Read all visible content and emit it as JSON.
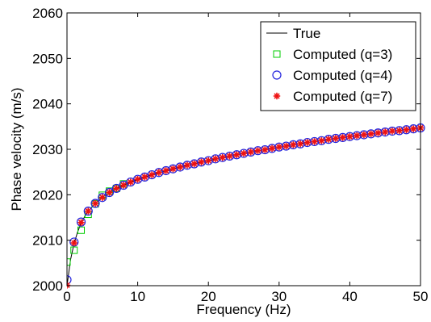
{
  "chart_data": {
    "type": "line",
    "title": "",
    "xlabel": "Frequency (Hz)",
    "ylabel": "Phase velocity (m/s)",
    "xlim": [
      0,
      50
    ],
    "ylim": [
      2000,
      2060
    ],
    "xticks": [
      0,
      10,
      20,
      30,
      40,
      50
    ],
    "yticks": [
      2000,
      2010,
      2020,
      2030,
      2040,
      2050,
      2060
    ],
    "grid": false,
    "legend_position": "top-right",
    "series": [
      {
        "name": "True",
        "style": "line",
        "color": "#000000",
        "x": [
          0,
          0.5,
          1,
          1.5,
          2,
          2.5,
          3,
          4,
          5,
          6,
          7,
          8,
          9,
          10,
          12,
          14,
          16,
          18,
          20,
          22,
          24,
          26,
          28,
          30,
          32,
          34,
          36,
          38,
          40,
          42,
          44,
          46,
          48,
          50
        ],
        "y": [
          2000.0,
          2005.7,
          2009.3,
          2011.8,
          2013.8,
          2015.2,
          2016.4,
          2018.1,
          2019.4,
          2020.5,
          2021.4,
          2022.1,
          2022.8,
          2023.4,
          2024.4,
          2025.3,
          2026.1,
          2026.8,
          2027.5,
          2028.2,
          2028.8,
          2029.4,
          2029.9,
          2030.5,
          2031.0,
          2031.5,
          2031.9,
          2032.4,
          2032.8,
          2033.2,
          2033.6,
          2034.0,
          2034.3,
          2034.7
        ]
      },
      {
        "name": "Computed (q=3)",
        "style": "marker",
        "marker": "square",
        "color": "#00cc00",
        "x": [
          0,
          1,
          2,
          3,
          4,
          5,
          6,
          7,
          8
        ],
        "y": [
          2005.2,
          2007.8,
          2012.2,
          2015.7,
          2018.0,
          2019.9,
          2020.8,
          2021.4,
          2022.4
        ]
      },
      {
        "name": "Computed (q=4)",
        "style": "marker",
        "marker": "circle",
        "color": "#2222dd",
        "x": [
          0,
          1,
          2,
          3,
          4,
          5,
          6,
          7,
          8,
          9,
          10,
          11,
          12,
          13,
          14,
          15,
          16,
          17,
          18,
          19,
          20,
          21,
          22,
          23,
          24,
          25,
          26,
          27,
          28,
          29,
          30,
          31,
          32,
          33,
          34,
          35,
          36,
          37,
          38,
          39,
          40,
          41,
          42,
          43,
          44,
          45,
          46,
          47,
          48,
          49,
          50
        ],
        "y": [
          2001.3,
          2009.6,
          2014.0,
          2016.4,
          2018.1,
          2019.4,
          2020.5,
          2021.4,
          2022.1,
          2022.8,
          2023.4,
          2023.9,
          2024.4,
          2024.9,
          2025.3,
          2025.7,
          2026.1,
          2026.5,
          2026.8,
          2027.2,
          2027.5,
          2027.9,
          2028.2,
          2028.5,
          2028.8,
          2029.1,
          2029.4,
          2029.7,
          2029.9,
          2030.2,
          2030.5,
          2030.7,
          2031.0,
          2031.2,
          2031.5,
          2031.7,
          2031.9,
          2032.2,
          2032.4,
          2032.6,
          2032.8,
          2033.0,
          2033.2,
          2033.4,
          2033.6,
          2033.8,
          2034.0,
          2034.1,
          2034.3,
          2034.5,
          2034.7
        ]
      },
      {
        "name": "Computed (q=7)",
        "style": "marker",
        "marker": "asterisk",
        "color": "#ee1111",
        "x": [
          0,
          1,
          2,
          3,
          4,
          5,
          6,
          7,
          8,
          9,
          10,
          11,
          12,
          13,
          14,
          15,
          16,
          17,
          18,
          19,
          20,
          21,
          22,
          23,
          24,
          25,
          26,
          27,
          28,
          29,
          30,
          31,
          32,
          33,
          34,
          35,
          36,
          37,
          38,
          39,
          40,
          41,
          42,
          43,
          44,
          45,
          46,
          47,
          48,
          49,
          50
        ],
        "y": [
          2000.1,
          2009.4,
          2013.9,
          2016.4,
          2018.1,
          2019.4,
          2020.5,
          2021.4,
          2022.1,
          2022.8,
          2023.4,
          2023.9,
          2024.4,
          2024.9,
          2025.3,
          2025.7,
          2026.1,
          2026.5,
          2026.8,
          2027.2,
          2027.5,
          2027.9,
          2028.2,
          2028.5,
          2028.8,
          2029.1,
          2029.4,
          2029.7,
          2029.9,
          2030.2,
          2030.5,
          2030.7,
          2031.0,
          2031.2,
          2031.5,
          2031.7,
          2031.9,
          2032.2,
          2032.4,
          2032.6,
          2032.8,
          2033.0,
          2033.2,
          2033.4,
          2033.6,
          2033.8,
          2034.0,
          2034.1,
          2034.3,
          2034.5,
          2034.7
        ]
      }
    ]
  }
}
